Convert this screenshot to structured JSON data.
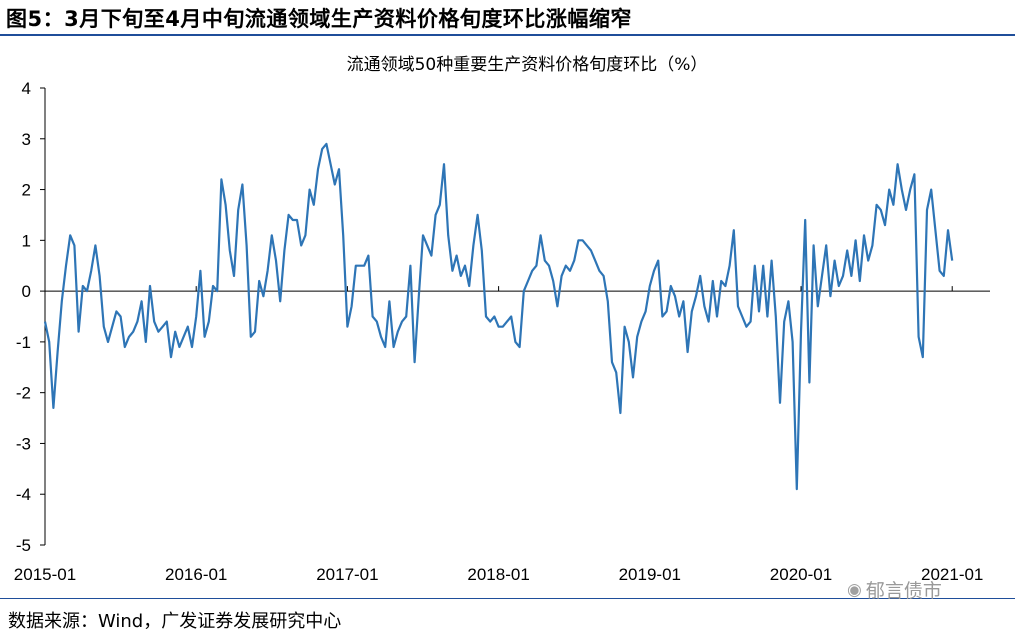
{
  "figure": {
    "title": "图5：3月下旬至4月中旬流通领域生产资料价格旬度环比涨幅缩窄",
    "source": "数据来源：Wind，广发证券发展研究中心",
    "watermark": "郁言债市",
    "watermark_icon": "wechat-icon"
  },
  "chart_data": {
    "type": "line",
    "title": "流通领域50种重要生产资料价格旬度环比（%）",
    "ylim": [
      -5,
      4
    ],
    "yticks": [
      4,
      3,
      2,
      1,
      0,
      -1,
      -2,
      -3,
      -4,
      -5
    ],
    "ytick_labels": [
      "4",
      "3",
      "2",
      "1",
      "0",
      "-1",
      "-2",
      "-3",
      "-4",
      "-5"
    ],
    "xlim": [
      0,
      225
    ],
    "xticks": [
      0,
      36,
      72,
      108,
      144,
      180,
      216
    ],
    "xtick_labels": [
      "2015-01",
      "2016-01",
      "2017-01",
      "2018-01",
      "2019-01",
      "2020-01",
      "2021-01"
    ],
    "line_color": "#2e75b6",
    "series": [
      {
        "name": "",
        "values": [
          -0.6,
          -1.0,
          -2.3,
          -1.2,
          -0.2,
          0.5,
          1.1,
          0.9,
          -0.8,
          0.1,
          0.0,
          0.4,
          0.9,
          0.3,
          -0.7,
          -1.0,
          -0.7,
          -0.4,
          -0.5,
          -1.1,
          -0.9,
          -0.8,
          -0.6,
          -0.2,
          -1.0,
          0.1,
          -0.6,
          -0.8,
          -0.7,
          -0.6,
          -1.3,
          -0.8,
          -1.1,
          -0.9,
          -0.7,
          -1.1,
          -0.5,
          0.4,
          -0.9,
          -0.6,
          0.1,
          0.0,
          2.2,
          1.7,
          0.8,
          0.3,
          1.6,
          2.1,
          0.9,
          -0.9,
          -0.8,
          0.2,
          -0.1,
          0.4,
          1.1,
          0.6,
          -0.2,
          0.8,
          1.5,
          1.4,
          1.4,
          0.9,
          1.1,
          2.0,
          1.7,
          2.4,
          2.8,
          2.9,
          2.5,
          2.1,
          2.4,
          1.1,
          -0.7,
          -0.3,
          0.5,
          0.5,
          0.5,
          0.7,
          -0.5,
          -0.6,
          -0.9,
          -1.1,
          -0.2,
          -1.1,
          -0.8,
          -0.6,
          -0.5,
          0.5,
          -1.4,
          -0.1,
          1.1,
          0.9,
          0.7,
          1.5,
          1.7,
          2.5,
          1.1,
          0.4,
          0.7,
          0.3,
          0.5,
          0.1,
          0.9,
          1.5,
          0.8,
          -0.5,
          -0.6,
          -0.5,
          -0.7,
          -0.7,
          -0.6,
          -0.5,
          -1.0,
          -1.1,
          0.0,
          0.2,
          0.4,
          0.5,
          1.1,
          0.6,
          0.5,
          0.2,
          -0.3,
          0.3,
          0.5,
          0.4,
          0.6,
          1.0,
          1.0,
          0.9,
          0.8,
          0.6,
          0.4,
          0.3,
          -0.2,
          -1.4,
          -1.6,
          -2.4,
          -0.7,
          -1.0,
          -1.7,
          -0.9,
          -0.6,
          -0.4,
          0.1,
          0.4,
          0.6,
          -0.5,
          -0.4,
          0.1,
          -0.1,
          -0.5,
          -0.2,
          -1.2,
          -0.4,
          -0.1,
          0.3,
          -0.3,
          -0.6,
          0.2,
          -0.5,
          0.2,
          0.1,
          0.5,
          1.2,
          -0.3,
          -0.5,
          -0.7,
          -0.6,
          0.5,
          -0.4,
          0.5,
          -0.5,
          0.6,
          -0.5,
          -2.2,
          -0.6,
          -0.2,
          -1.0,
          -3.9,
          -0.8,
          1.4,
          -1.8,
          0.9,
          -0.3,
          0.3,
          0.9,
          -0.1,
          0.6,
          0.1,
          0.3,
          0.8,
          0.3,
          1.0,
          0.2,
          1.1,
          0.6,
          0.9,
          1.7,
          1.6,
          1.3,
          2.0,
          1.7,
          2.5,
          2.0,
          1.6,
          2.0,
          2.3,
          -0.9,
          -1.3,
          1.6,
          2.0,
          1.2,
          0.4,
          0.3,
          1.2,
          0.6
        ]
      }
    ],
    "grid": false,
    "legend": "none"
  }
}
